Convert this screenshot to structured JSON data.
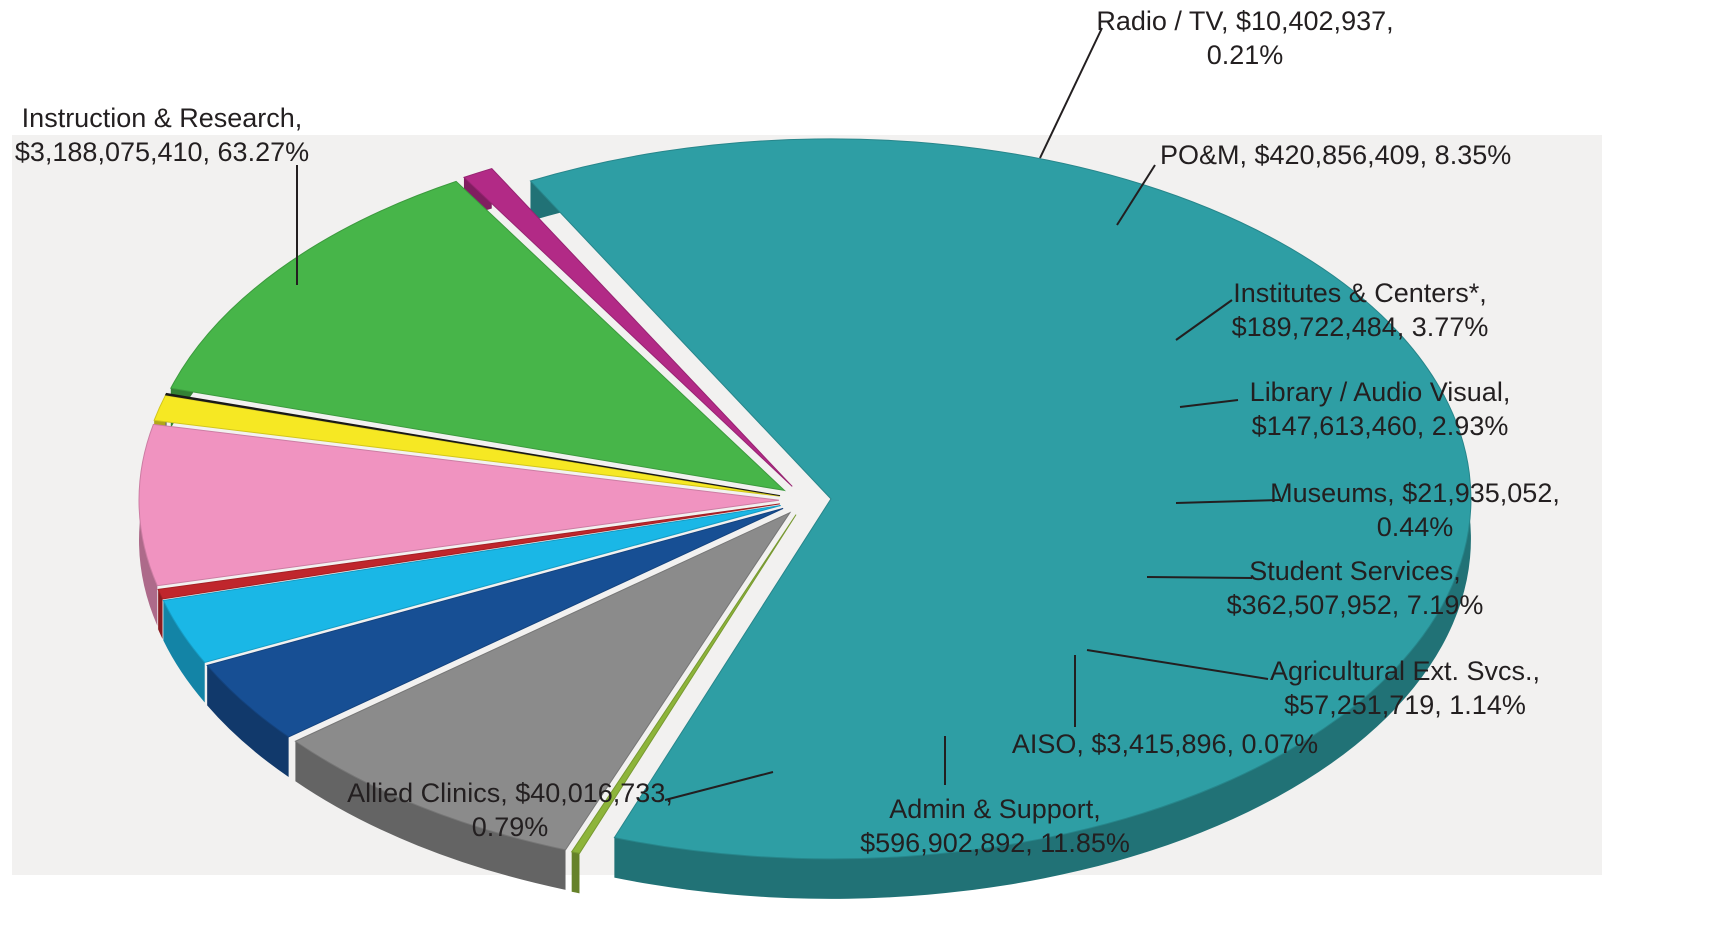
{
  "chart_data": {
    "type": "pie",
    "title": "",
    "total_units": "USD",
    "slices": [
      {
        "name": "Instruction & Research",
        "value_text": "$3,188,075,410",
        "pct_text": "63.27%",
        "value": 3188075410,
        "pct": 63.27,
        "color": "#2e9ea4",
        "label": [
          "Instruction & Research,",
          "$3,188,075,410, 63.27%"
        ]
      },
      {
        "name": "Radio / TV",
        "value_text": "$10,402,937",
        "pct_text": "0.21%",
        "value": 10402937,
        "pct": 0.21,
        "color": "#8db43a",
        "label": [
          "Radio / TV, $10,402,937,",
          "0.21%"
        ]
      },
      {
        "name": "PO&M",
        "value_text": "$420,856,409",
        "pct_text": "8.35%",
        "value": 420856409,
        "pct": 8.35,
        "color": "#8b8b8b",
        "label": [
          "PO&M, $420,856,409, 8.35%"
        ]
      },
      {
        "name": "Institutes & Centers*",
        "value_text": "$189,722,484",
        "pct_text": "3.77%",
        "value": 189722484,
        "pct": 3.77,
        "color": "#174f94",
        "label": [
          "Institutes & Centers*,",
          "$189,722,484, 3.77%"
        ]
      },
      {
        "name": "Library / Audio Visual",
        "value_text": "$147,613,460",
        "pct_text": "2.93%",
        "value": 147613460,
        "pct": 2.93,
        "color": "#1ab7e6",
        "label": [
          "Library / Audio Visual,",
          "$147,613,460, 2.93%"
        ]
      },
      {
        "name": "Museums",
        "value_text": "$21,935,052",
        "pct_text": "0.44%",
        "value": 21935052,
        "pct": 0.44,
        "color": "#c0262c",
        "label": [
          "Museums, $21,935,052,",
          "0.44%"
        ]
      },
      {
        "name": "Student Services",
        "value_text": "$362,507,952",
        "pct_text": "7.19%",
        "value": 362507952,
        "pct": 7.19,
        "color": "#f093c0",
        "label": [
          "Student Services,",
          "$362,507,952, 7.19%"
        ]
      },
      {
        "name": "Agricultural Ext. Svcs.",
        "value_text": "$57,251,719",
        "pct_text": "1.14%",
        "value": 57251719,
        "pct": 1.14,
        "color": "#f6e823",
        "label": [
          "Agricultural Ext. Svcs.,",
          "$57,251,719, 1.14%"
        ]
      },
      {
        "name": "AISO",
        "value_text": "$3,415,896",
        "pct_text": "0.07%",
        "value": 3415896,
        "pct": 0.07,
        "color": "#1d1d1b",
        "label": [
          "AISO, $3,415,896, 0.07%"
        ]
      },
      {
        "name": "Admin & Support",
        "value_text": "$596,902,892",
        "pct_text": "11.85%",
        "value": 596902892,
        "pct": 11.85,
        "color": "#47b549",
        "label": [
          "Admin & Support,",
          "$596,902,892, 11.85%"
        ]
      },
      {
        "name": "Allied Clinics",
        "value_text": "$40,016,733",
        "pct_text": "0.79%",
        "value": 40016733,
        "pct": 0.79,
        "color": "#b22a86",
        "label": [
          "Allied Clinics, $40,016,733,",
          "0.79%"
        ]
      }
    ],
    "legend": "none",
    "style": "3d-exploded-pie"
  }
}
